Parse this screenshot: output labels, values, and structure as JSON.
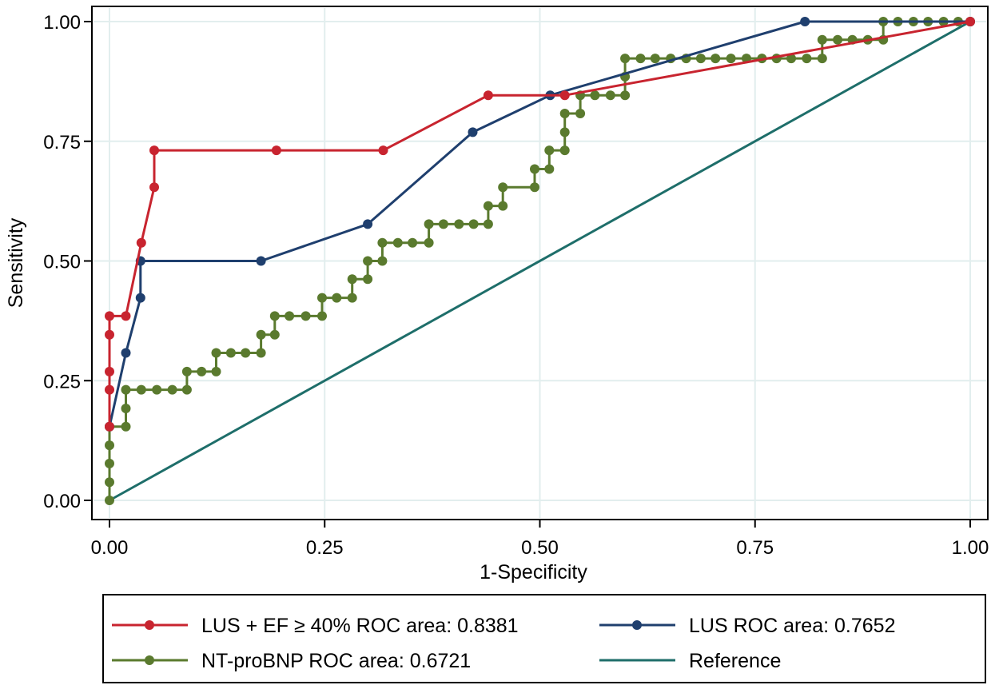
{
  "chart_data": {
    "type": "line",
    "title": "",
    "xlabel": "1-Specificity",
    "ylabel": "Sensitivity",
    "xlim": [
      0,
      1
    ],
    "ylim": [
      0,
      1
    ],
    "xticks": [
      "0.00",
      "0.25",
      "0.50",
      "0.75",
      "1.00"
    ],
    "yticks": [
      "0.00",
      "0.25",
      "0.50",
      "0.75",
      "1.00"
    ],
    "grid": true,
    "legend_position": "bottom",
    "series": [
      {
        "name": "LUS + EF ≥ 40% ROC area: 0.8381",
        "color": "#c8242f",
        "markers": true,
        "points": [
          [
            0,
            0.154
          ],
          [
            0,
            0.231
          ],
          [
            0,
            0.269
          ],
          [
            0,
            0.346
          ],
          [
            0,
            0.385
          ],
          [
            0.019,
            0.385
          ],
          [
            0.037,
            0.538
          ],
          [
            0.052,
            0.654
          ],
          [
            0.052,
            0.731
          ],
          [
            0.194,
            0.731
          ],
          [
            0.318,
            0.731
          ],
          [
            0.44,
            0.846
          ],
          [
            0.529,
            0.846
          ],
          [
            1,
            1
          ]
        ]
      },
      {
        "name": "LUS ROC area: 0.7652",
        "color": "#1f3f6e",
        "markers": true,
        "points": [
          [
            0,
            0.154
          ],
          [
            0.019,
            0.308
          ],
          [
            0.036,
            0.423
          ],
          [
            0.036,
            0.5
          ],
          [
            0.176,
            0.5
          ],
          [
            0.3,
            0.577
          ],
          [
            0.422,
            0.769
          ],
          [
            0.512,
            0.846
          ],
          [
            0.808,
            1
          ],
          [
            1,
            1
          ]
        ]
      },
      {
        "name": "NT-proBNP ROC area: 0.6721",
        "color": "#5a7a2e",
        "markers": true,
        "points": [
          [
            0,
            0
          ],
          [
            0,
            0.038
          ],
          [
            0,
            0.077
          ],
          [
            0,
            0.115
          ],
          [
            0,
            0.154
          ],
          [
            0.019,
            0.154
          ],
          [
            0.019,
            0.192
          ],
          [
            0.019,
            0.231
          ],
          [
            0.037,
            0.231
          ],
          [
            0.055,
            0.231
          ],
          [
            0.073,
            0.231
          ],
          [
            0.09,
            0.231
          ],
          [
            0.09,
            0.269
          ],
          [
            0.107,
            0.269
          ],
          [
            0.124,
            0.269
          ],
          [
            0.124,
            0.308
          ],
          [
            0.141,
            0.308
          ],
          [
            0.158,
            0.308
          ],
          [
            0.176,
            0.308
          ],
          [
            0.176,
            0.346
          ],
          [
            0.192,
            0.346
          ],
          [
            0.192,
            0.385
          ],
          [
            0.209,
            0.385
          ],
          [
            0.228,
            0.385
          ],
          [
            0.247,
            0.385
          ],
          [
            0.247,
            0.423
          ],
          [
            0.264,
            0.423
          ],
          [
            0.282,
            0.423
          ],
          [
            0.282,
            0.462
          ],
          [
            0.3,
            0.462
          ],
          [
            0.3,
            0.5
          ],
          [
            0.317,
            0.5
          ],
          [
            0.317,
            0.538
          ],
          [
            0.335,
            0.538
          ],
          [
            0.352,
            0.538
          ],
          [
            0.371,
            0.538
          ],
          [
            0.371,
            0.577
          ],
          [
            0.388,
            0.577
          ],
          [
            0.406,
            0.577
          ],
          [
            0.423,
            0.577
          ],
          [
            0.44,
            0.577
          ],
          [
            0.44,
            0.615
          ],
          [
            0.457,
            0.615
          ],
          [
            0.457,
            0.654
          ],
          [
            0.494,
            0.654
          ],
          [
            0.494,
            0.692
          ],
          [
            0.511,
            0.692
          ],
          [
            0.511,
            0.731
          ],
          [
            0.529,
            0.731
          ],
          [
            0.529,
            0.769
          ],
          [
            0.529,
            0.808
          ],
          [
            0.547,
            0.808
          ],
          [
            0.547,
            0.846
          ],
          [
            0.564,
            0.846
          ],
          [
            0.582,
            0.846
          ],
          [
            0.599,
            0.846
          ],
          [
            0.599,
            0.885
          ],
          [
            0.599,
            0.923
          ],
          [
            0.617,
            0.923
          ],
          [
            0.634,
            0.923
          ],
          [
            0.652,
            0.923
          ],
          [
            0.67,
            0.923
          ],
          [
            0.687,
            0.923
          ],
          [
            0.704,
            0.923
          ],
          [
            0.722,
            0.923
          ],
          [
            0.74,
            0.923
          ],
          [
            0.758,
            0.923
          ],
          [
            0.775,
            0.923
          ],
          [
            0.792,
            0.923
          ],
          [
            0.81,
            0.923
          ],
          [
            0.828,
            0.923
          ],
          [
            0.828,
            0.962
          ],
          [
            0.846,
            0.962
          ],
          [
            0.863,
            0.962
          ],
          [
            0.881,
            0.962
          ],
          [
            0.899,
            0.962
          ],
          [
            0.899,
            1
          ],
          [
            0.916,
            1
          ],
          [
            0.934,
            1
          ],
          [
            0.951,
            1
          ],
          [
            0.969,
            1
          ],
          [
            0.986,
            1
          ],
          [
            1,
            1
          ]
        ]
      },
      {
        "name": "Reference",
        "color": "#1e6e6a",
        "markers": false,
        "points": [
          [
            0,
            0
          ],
          [
            1,
            1
          ]
        ]
      }
    ]
  }
}
